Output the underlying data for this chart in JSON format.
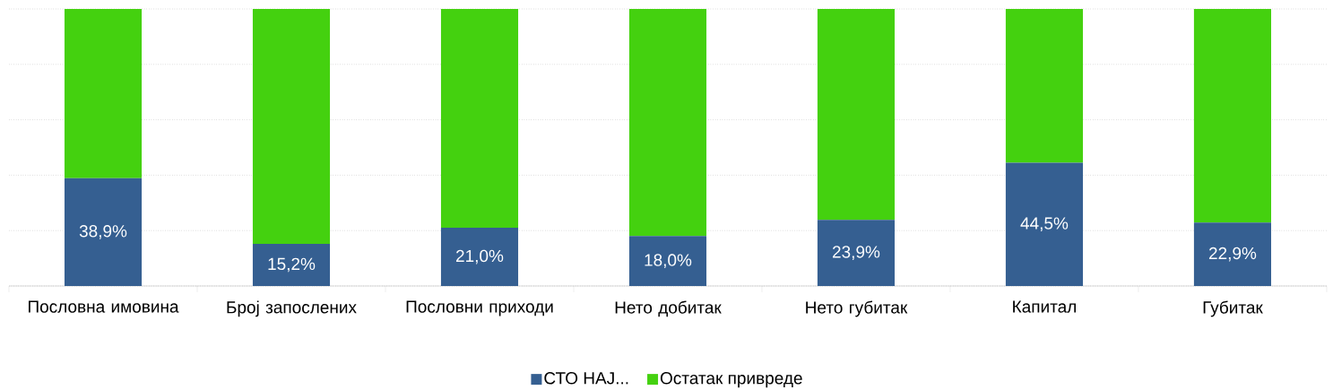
{
  "chart_data": {
    "type": "bar",
    "stacked": true,
    "categories": [
      "Пословна имовина",
      "Број запослених",
      "Пословни приходи",
      "Нето добитак",
      "Нето губитак",
      "Капитал",
      "Губитак"
    ],
    "series": [
      {
        "name": "СТО НАЈ...",
        "color": "#355f91",
        "values": [
          38.9,
          15.2,
          21.0,
          18.0,
          23.9,
          44.5,
          22.9
        ],
        "value_labels": [
          "38,9%",
          "15,2%",
          "21,0%",
          "18,0%",
          "23,9%",
          "44,5%",
          "22,9%"
        ]
      },
      {
        "name": "Остатак привреде",
        "color": "#44d10f",
        "values": [
          61.1,
          84.8,
          79.0,
          82.0,
          76.1,
          55.5,
          77.1
        ]
      }
    ],
    "ylim": [
      0,
      100
    ],
    "yticks": [
      {
        "value": 0,
        "label": null
      },
      {
        "value": 20,
        "label": null
      },
      {
        "value": 40,
        "label": null
      },
      {
        "value": 60,
        "label": null
      },
      {
        "value": 80,
        "label": null
      },
      {
        "value": 100,
        "label": null
      }
    ],
    "tick_labels": "x",
    "grid": "y",
    "legend": "bottom"
  }
}
